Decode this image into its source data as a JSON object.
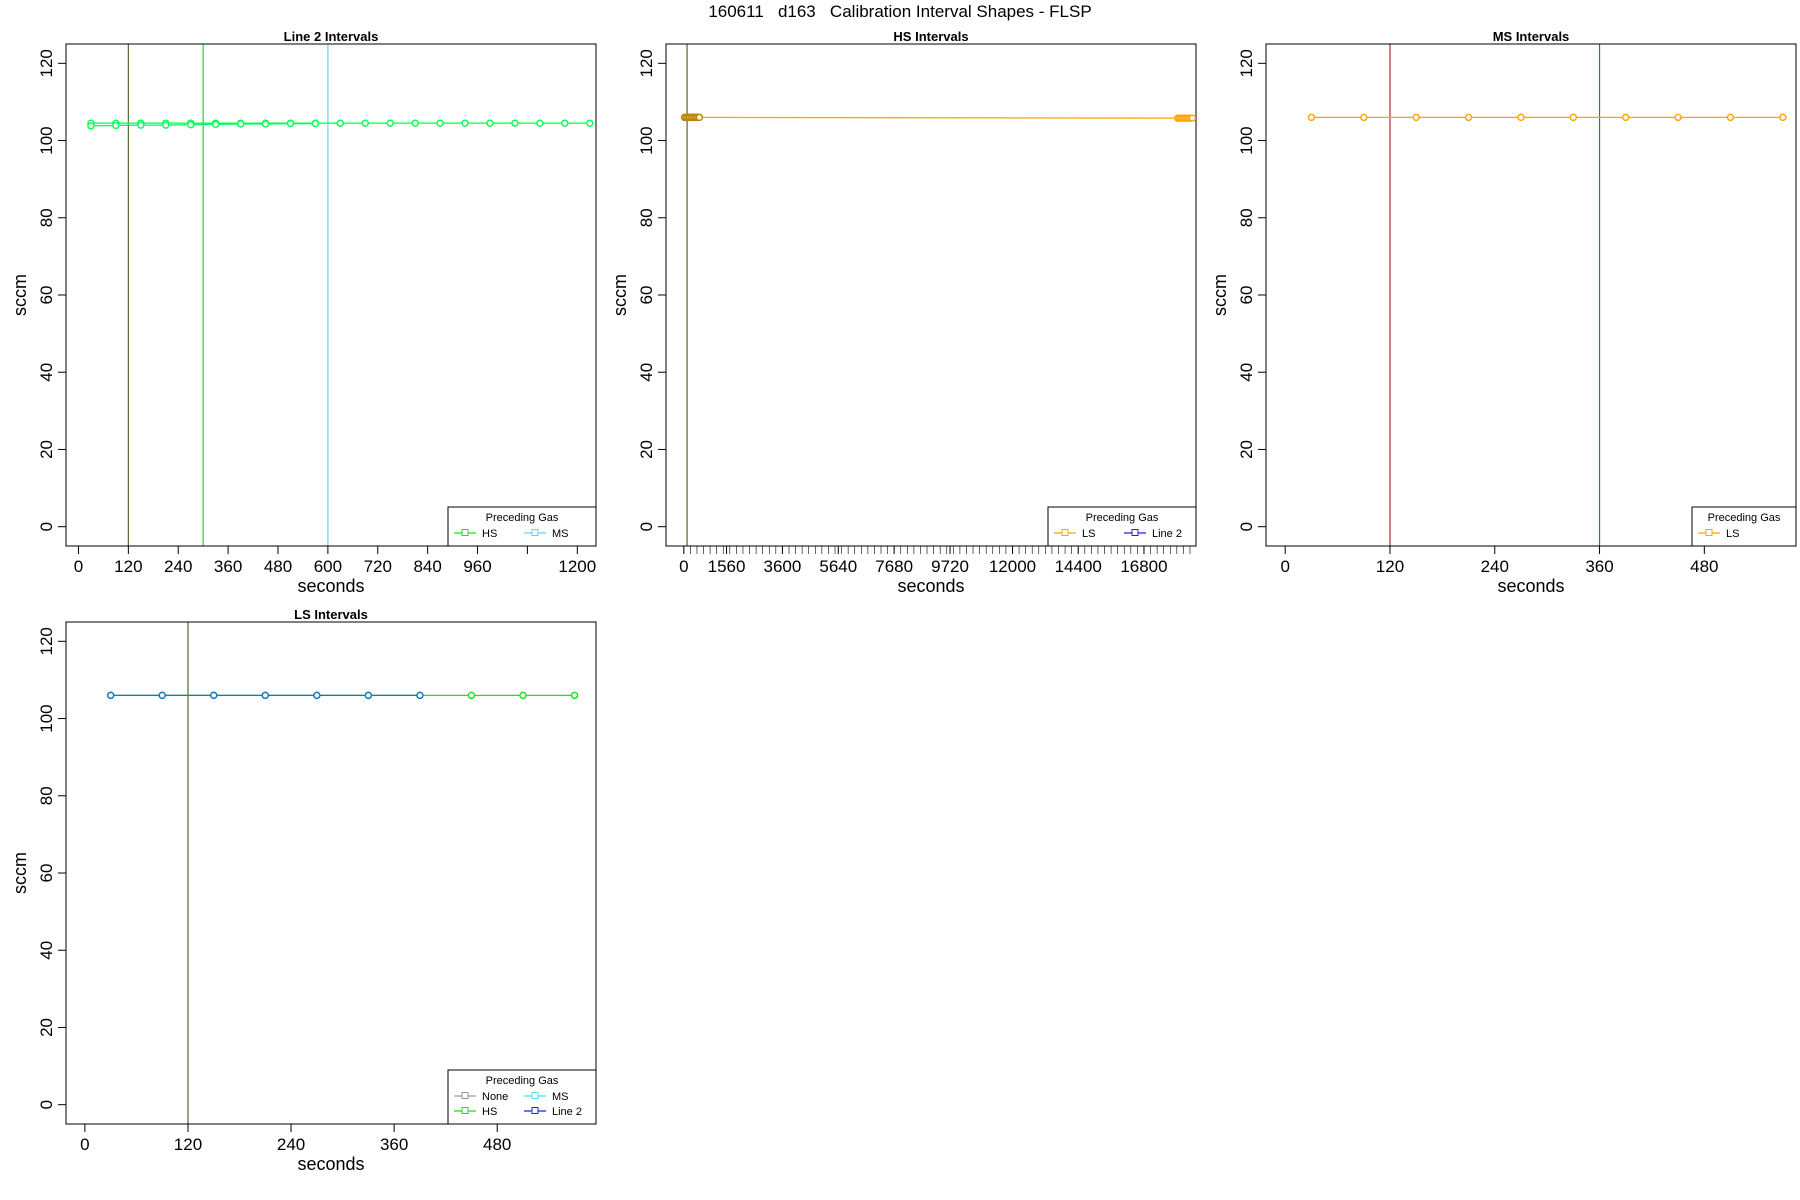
{
  "title": "160611   d163   Calibration Interval Shapes - FLSP",
  "colors": {
    "None": "#9a9a9a",
    "HS": "#22dd22",
    "MS": "#55ddee",
    "LS": "#ffa500",
    "Line 2": "#2222ee",
    "line2_interval": "#00ff55",
    "hs_brown": "#b8860b",
    "ls_mixed": "#1177cc"
  },
  "chart_data": [
    {
      "type": "line",
      "title": "Line 2 Intervals",
      "xlabel": "seconds",
      "ylabel": "sccm",
      "xlim": [
        -30,
        1245
      ],
      "ylim": [
        -5,
        125
      ],
      "xticks": [
        0,
        120,
        240,
        360,
        480,
        600,
        720,
        840,
        960,
        1080,
        1200
      ],
      "xtick_labels": [
        "0",
        "120",
        "240",
        "360",
        "480",
        "600",
        "720",
        "840",
        "960",
        "",
        "1200"
      ],
      "yticks": [
        0,
        20,
        40,
        60,
        80,
        100,
        120
      ],
      "vlines": [
        {
          "x": 120,
          "color": "#556b2f"
        },
        {
          "x": 300,
          "color": "#22dd22"
        },
        {
          "x": 600,
          "color": "#55ddee"
        }
      ],
      "legend": {
        "title": "Preceding Gas",
        "position": "bottom-right",
        "columns": 2,
        "entries": [
          {
            "label": "HS",
            "color": "#22dd22"
          },
          {
            "label": "MS",
            "color": "#55ddee"
          }
        ]
      },
      "series": [
        {
          "color": "#00ff55",
          "pch": "circle",
          "x": [
            30,
            90,
            150,
            210,
            270,
            330,
            390,
            450,
            510,
            570,
            630,
            690,
            750,
            810,
            870,
            930,
            990,
            1050,
            1110,
            1170,
            1230
          ],
          "y": [
            104.5,
            104.5,
            104.5,
            104.5,
            104.5,
            104.5,
            104.5,
            104.5,
            104.5,
            104.5,
            104.5,
            104.5,
            104.5,
            104.5,
            104.5,
            104.5,
            104.5,
            104.5,
            104.5,
            104.5,
            104.5
          ]
        },
        {
          "color": "#00ff55",
          "pch": "circle",
          "x": [
            30,
            90,
            150,
            210,
            270,
            330,
            390,
            450,
            510,
            570
          ],
          "y": [
            103.8,
            103.9,
            104.0,
            104.0,
            104.1,
            104.2,
            104.3,
            104.3,
            104.4,
            104.4
          ]
        }
      ]
    },
    {
      "type": "line",
      "title": "HS Intervals",
      "xlabel": "seconds",
      "ylabel": "sccm",
      "xlim": [
        -650,
        18700
      ],
      "ylim": [
        -5,
        125
      ],
      "xticks": [
        0,
        1560,
        3600,
        5640,
        7680,
        9720,
        12000,
        14400,
        16800
      ],
      "xtick_labels": [
        "0",
        "1560",
        "3600",
        "5640",
        "7680",
        "9720",
        "12000",
        "14400",
        "16800"
      ],
      "minor_tick_range": [
        0,
        18600
      ],
      "minor_tick_step": 240,
      "yticks": [
        0,
        20,
        40,
        60,
        80,
        100,
        120
      ],
      "vlines": [
        {
          "x": 120,
          "color": "#556b2f"
        }
      ],
      "legend": {
        "title": "Preceding Gas",
        "position": "bottom-right",
        "columns": 2,
        "entries": [
          {
            "label": "LS",
            "color": "#ffa500"
          },
          {
            "label": "Line 2",
            "color": "#2222ee"
          }
        ]
      },
      "series": [
        {
          "color": "#ffa500",
          "pch": "circle",
          "x": [
            30,
            90,
            150,
            210,
            270,
            330,
            390,
            450,
            510,
            570,
            18030,
            18090,
            18150,
            18210,
            18270,
            18330,
            18390,
            18450,
            18510,
            18570
          ],
          "y": [
            106,
            106,
            106,
            106,
            106,
            106,
            106,
            106,
            106,
            106,
            105.8,
            105.8,
            105.8,
            105.8,
            105.8,
            105.8,
            105.8,
            105.8,
            105.8,
            105.8
          ]
        },
        {
          "color": "#b8860b",
          "pch": "circle",
          "x": [
            30,
            90,
            150,
            210,
            270,
            330,
            390,
            450,
            510,
            570
          ],
          "y": [
            106,
            106,
            106,
            106,
            106,
            106,
            106,
            106,
            106,
            106
          ]
        }
      ]
    },
    {
      "type": "line",
      "title": "MS Intervals",
      "xlabel": "seconds",
      "ylabel": "sccm",
      "xlim": [
        -22,
        585
      ],
      "ylim": [
        -5,
        125
      ],
      "xticks": [
        0,
        120,
        240,
        360,
        480
      ],
      "xtick_labels": [
        "0",
        "120",
        "240",
        "360",
        "480"
      ],
      "yticks": [
        0,
        20,
        40,
        60,
        80,
        100,
        120
      ],
      "vlines": [
        {
          "x": 120,
          "color": "#a0303a"
        },
        {
          "x": 360,
          "color": "#228b22"
        }
      ],
      "legend": {
        "title": "Preceding Gas",
        "position": "bottom-right",
        "columns": 1,
        "entries": [
          {
            "label": "LS",
            "color": "#ffa500"
          }
        ]
      },
      "series": [
        {
          "color": "#ffa500",
          "pch": "circle",
          "x": [
            30,
            90,
            150,
            210,
            270,
            330,
            390,
            450,
            510,
            570
          ],
          "y": [
            106,
            106,
            106,
            106,
            106,
            106,
            106,
            106,
            106,
            106
          ]
        }
      ]
    },
    {
      "type": "line",
      "title": "LS Intervals",
      "xlabel": "seconds",
      "ylabel": "sccm",
      "xlim": [
        -22,
        595
      ],
      "ylim": [
        -5,
        125
      ],
      "xticks": [
        0,
        120,
        240,
        360,
        480
      ],
      "xtick_labels": [
        "0",
        "120",
        "240",
        "360",
        "480"
      ],
      "yticks": [
        0,
        20,
        40,
        60,
        80,
        100,
        120
      ],
      "vlines": [
        {
          "x": 120,
          "color": "#556b2f"
        }
      ],
      "legend": {
        "title": "Preceding Gas",
        "position": "bottom-right",
        "columns": 2,
        "entries": [
          {
            "label": "None",
            "color": "#9a9a9a"
          },
          {
            "label": "MS",
            "color": "#55ddee"
          },
          {
            "label": "HS",
            "color": "#22dd22"
          },
          {
            "label": "Line 2",
            "color": "#2222ee"
          }
        ]
      },
      "series": [
        {
          "color": "#22dd22",
          "pch": "circle",
          "x": [
            30,
            90,
            150,
            210,
            270,
            330,
            390,
            450,
            510,
            570
          ],
          "y": [
            106,
            106,
            106,
            106,
            106,
            106,
            106,
            106,
            106,
            106
          ]
        },
        {
          "color": "#1177cc",
          "pch": "circle",
          "x": [
            30,
            90,
            150,
            210,
            270,
            330,
            390
          ],
          "y": [
            106,
            106,
            106,
            106,
            106,
            106,
            106
          ]
        }
      ]
    }
  ]
}
